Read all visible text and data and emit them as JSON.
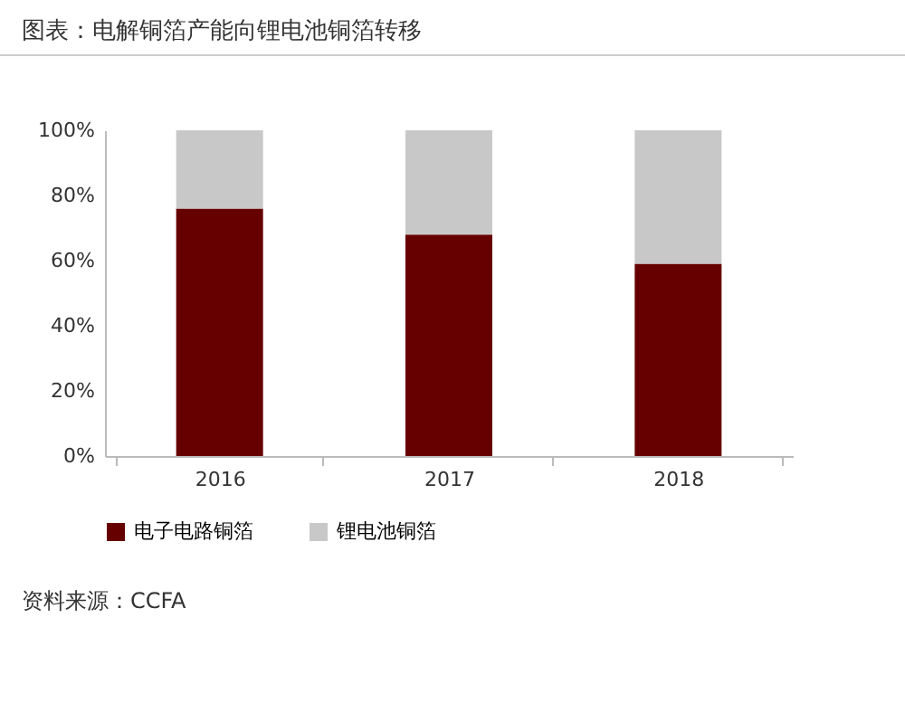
{
  "chart_data": {
    "type": "bar",
    "title": "图表：电解铜箔产能向锂电池铜箔转移",
    "categories": [
      "2016",
      "2017",
      "2018"
    ],
    "stacked": true,
    "series": [
      {
        "name": "电子电路铜箔",
        "color": "#660000",
        "values": [
          76,
          68,
          59
        ]
      },
      {
        "name": "锂电池铜箔",
        "color": "#c8c8c8",
        "values": [
          24,
          32,
          41
        ]
      }
    ],
    "ylim": [
      0,
      100
    ],
    "yticks": [
      {
        "value": 0,
        "label": "0%"
      },
      {
        "value": 20,
        "label": "20%"
      },
      {
        "value": 40,
        "label": "40%"
      },
      {
        "value": 60,
        "label": "60%"
      },
      {
        "value": 80,
        "label": "80%"
      },
      {
        "value": 100,
        "label": "100%"
      }
    ],
    "grid": false,
    "legend": "bottom",
    "annotations": [
      "资料来源：CCFA"
    ]
  }
}
